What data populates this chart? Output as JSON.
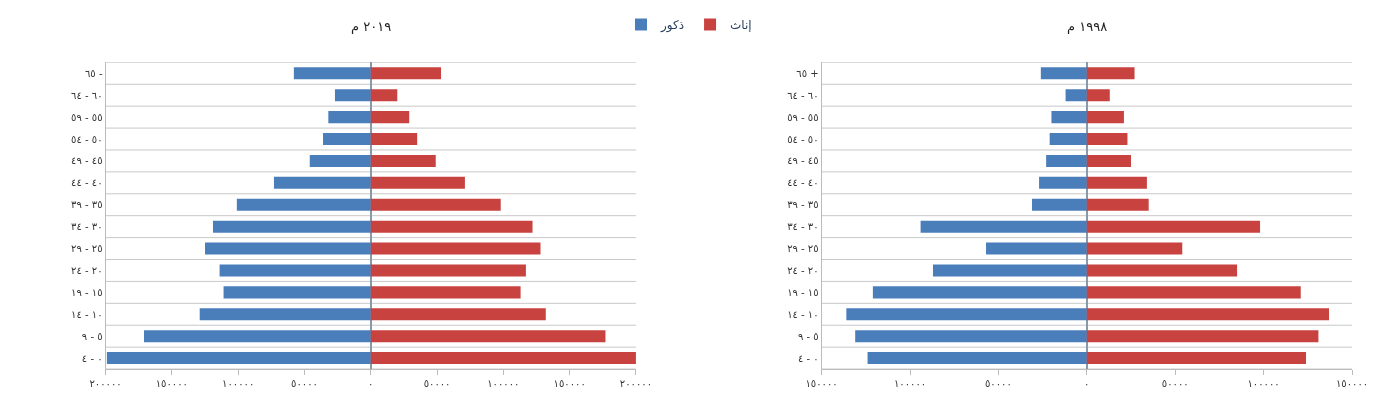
{
  "chart_data": [
    {
      "type": "bar",
      "title": "٢٠١٩ م",
      "orientation": "horizontal",
      "stacked": true,
      "grid": "y",
      "legend": "top right",
      "categories": [
        "٦٥ -",
        "٦٠ - ٦٤",
        "٥٥ - ٥٩",
        "٥٠ - ٥٤",
        "٤٥ - ٤٩",
        "٤٠ - ٤٤",
        "٣٥ - ٣٩",
        "٣٠ - ٣٤",
        "٢٥ - ٢٩",
        "٢٠ - ٢٤",
        "١٥ - ١٩",
        "١٠ - ١٤",
        "٥ - ٩",
        "٠ - ٤"
      ],
      "series": [
        {
          "name": "ذكور",
          "color": "#4a7ebb",
          "values": [
            -58000,
            -27000,
            -32000,
            -36000,
            -46000,
            -73000,
            -101000,
            -119000,
            -125000,
            -114000,
            -111000,
            -129000,
            -171000,
            -199000
          ]
        },
        {
          "name": "إناث",
          "color": "#c8423f",
          "values": [
            53000,
            20000,
            29000,
            35000,
            49000,
            71000,
            98000,
            122000,
            128000,
            117000,
            113000,
            132000,
            177000,
            200000
          ]
        }
      ],
      "xlim": [
        -200000,
        200000
      ],
      "xticks": [
        {
          "value": -200000,
          "label": "٢٠٠٠٠٠"
        },
        {
          "value": -150000,
          "label": "١٥٠٠٠٠"
        },
        {
          "value": -100000,
          "label": "١٠٠٠٠٠"
        },
        {
          "value": -50000,
          "label": "٥٠٠٠٠"
        },
        {
          "value": 0,
          "label": "٠"
        },
        {
          "value": 50000,
          "label": "٥٠٠٠٠"
        },
        {
          "value": 100000,
          "label": "١٠٠٠٠٠"
        },
        {
          "value": 150000,
          "label": "١٥٠٠٠٠"
        },
        {
          "value": 200000,
          "label": "٢٠٠٠٠٠"
        }
      ]
    },
    {
      "type": "bar",
      "title": "١٩٩٨ م",
      "orientation": "horizontal",
      "stacked": true,
      "grid": "y",
      "categories": [
        "٦٥ +",
        "٦٠ - ٦٤",
        "٥٥ - ٥٩",
        "٥٠ - ٥٤",
        "٤٥ - ٤٩",
        "٤٠ - ٤٤",
        "٣٥ - ٣٩",
        "٣٠ - ٣٤",
        "٢٥ - ٢٩",
        "٢٠ - ٢٤",
        "١٥ - ١٩",
        "١٠ - ١٤",
        "٥ - ٩",
        "٠ - ٤"
      ],
      "series": [
        {
          "name": "ذكور",
          "color": "#4a7ebb",
          "values": [
            -26000,
            -12000,
            -20000,
            -21000,
            -23000,
            -27000,
            -31000,
            -94000,
            -57000,
            -87000,
            -121000,
            -136000,
            -131000,
            -124000
          ]
        },
        {
          "name": "إناث",
          "color": "#c8423f",
          "values": [
            27000,
            13000,
            21000,
            23000,
            25000,
            34000,
            35000,
            98000,
            54000,
            85000,
            121000,
            137000,
            131000,
            124000
          ]
        }
      ],
      "xlim": [
        -150000,
        150000
      ],
      "xticks": [
        {
          "value": -150000,
          "label": "١٥٠٠٠٠"
        },
        {
          "value": -100000,
          "label": "١٠٠٠٠٠"
        },
        {
          "value": -50000,
          "label": "٥٠٠٠٠"
        },
        {
          "value": 0,
          "label": "٠"
        },
        {
          "value": 50000,
          "label": "٥٠٠٠٠"
        },
        {
          "value": 100000,
          "label": "١٠٠٠٠٠"
        },
        {
          "value": 150000,
          "label": "١٥٠٠٠٠"
        }
      ]
    }
  ]
}
